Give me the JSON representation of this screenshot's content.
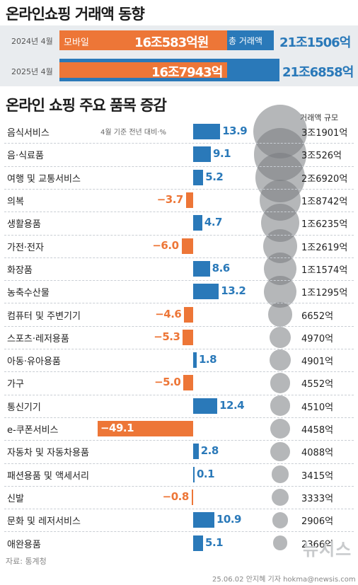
{
  "title": "온라인쇼핑 거래액 동향",
  "top": {
    "rows": [
      {
        "year": "2024년 4월",
        "mobile_label": "모바일",
        "mobile_value": "16조583억원",
        "total_label": "총 거래액",
        "total_value": "21조1506억"
      },
      {
        "year": "2025년 4월",
        "mobile_value": "16조7943억",
        "total_value": "21조6858억"
      }
    ]
  },
  "section_title": "온라인 쇼핑 주요 품목 증감",
  "note_change": "4월 기준 전년 대비·%",
  "note_volume": "거래액 규모",
  "colors": {
    "increase": "#2a79b9",
    "decrease": "#ed7637",
    "bubble": "#7c8084"
  },
  "chart_data": {
    "type": "bar",
    "orientation": "horizontal",
    "unit": "%",
    "categories": [
      "음식서비스",
      "음·식료품",
      "여행 및 교통서비스",
      "의복",
      "생활용품",
      "가전·전자",
      "화장품",
      "농축수산물",
      "컴퓨터 및 주변기기",
      "스포츠·레저용품",
      "아동·유아용품",
      "가구",
      "통신기기",
      "e-쿠폰서비스",
      "자동차 및 자동차용품",
      "패션용품 및 액세서리",
      "신발",
      "문화 및 레저서비스",
      "애완용품"
    ],
    "values": [
      13.9,
      9.1,
      5.2,
      -3.7,
      4.7,
      -6.0,
      8.6,
      13.2,
      -4.6,
      -5.3,
      1.8,
      -5.0,
      12.4,
      -49.1,
      2.8,
      0.1,
      -0.8,
      10.9,
      5.1
    ],
    "value_labels": [
      "13.9",
      "9.1",
      "5.2",
      "−3.7",
      "4.7",
      "−6.0",
      "8.6",
      "13.2",
      "−4.6",
      "−5.3",
      "1.8",
      "−5.0",
      "12.4",
      "−49.1",
      "2.8",
      "0.1",
      "−0.8",
      "10.9",
      "5.1"
    ],
    "volumes": [
      "3조1901억",
      "3조526억",
      "2조6920억",
      "1조8742억",
      "1조6235억",
      "1조2619억",
      "1조1574억",
      "1조1295억",
      "6652억",
      "4970억",
      "4901억",
      "4552억",
      "4510억",
      "4458억",
      "4088억",
      "3415억",
      "3333억",
      "2906억",
      "2366억"
    ],
    "volume_values_eok": [
      31901,
      30526,
      26920,
      18742,
      16235,
      12619,
      11574,
      11295,
      6652,
      4970,
      4901,
      4552,
      4510,
      4458,
      4088,
      3415,
      3333,
      2906,
      2366
    ]
  },
  "source": "자료: 통계청",
  "footer": "25.06.02 안지혜 기자 hokma@newsis.com",
  "watermark": "뉴시스"
}
